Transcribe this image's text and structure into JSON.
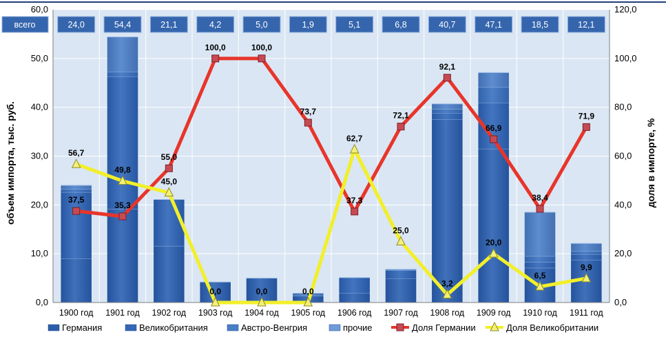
{
  "chart_data": {
    "type": "bar",
    "stacked": true,
    "categories": [
      "1900 год",
      "1901 год",
      "1902 год",
      "1903 год",
      "1904 год",
      "1905 год",
      "1906 год",
      "1907 год",
      "1908 год",
      "1909 год",
      "1910 год",
      "1911 год"
    ],
    "ylabel": "объем импорта, тыс. руб.",
    "y2label": "доля в импорте, %",
    "ylim": [
      0,
      60
    ],
    "y2lim": [
      0,
      120
    ],
    "yticks": [
      "0,0",
      "10,0",
      "20,0",
      "30,0",
      "40,0",
      "50,0",
      "60,0"
    ],
    "y2ticks": [
      "0,0",
      "20,0",
      "40,0",
      "60,0",
      "80,0",
      "100,0",
      "120,0"
    ],
    "grid": true,
    "totals_label": "всего",
    "totals": [
      24.0,
      54.4,
      21.1,
      4.2,
      5.0,
      1.9,
      5.1,
      6.8,
      40.7,
      47.1,
      18.5,
      12.1
    ],
    "totals_text": [
      "24,0",
      "54,4",
      "21,1",
      "4,2",
      "5,0",
      "1,9",
      "5,1",
      "6,8",
      "40,7",
      "47,1",
      "18,5",
      "12,1"
    ],
    "bar_series": [
      {
        "name": "Германия",
        "values": [
          9.0,
          19.2,
          11.6,
          4.2,
          5.0,
          1.4,
          1.9,
          4.9,
          37.5,
          31.5,
          7.1,
          8.7
        ],
        "color": "#2e5da8"
      },
      {
        "name": "Великобритания",
        "values": [
          13.6,
          27.1,
          9.5,
          0,
          0,
          0,
          3.2,
          1.7,
          1.3,
          9.4,
          1.2,
          1.2
        ],
        "color": "#3567b5"
      },
      {
        "name": "Австро-Венгрия",
        "values": [
          0.7,
          1.0,
          0,
          0,
          0,
          0,
          0,
          0,
          0.8,
          3.2,
          1.2,
          0.6
        ],
        "color": "#4a7ec6"
      },
      {
        "name": "прочие",
        "values": [
          0.7,
          7.1,
          0,
          0,
          0,
          0.5,
          0,
          0.2,
          1.1,
          3.0,
          9.0,
          1.6
        ],
        "color": "#6f9cd8"
      }
    ],
    "line_series": [
      {
        "name": "Доля Германии",
        "axis": "right",
        "color": "#e8352b",
        "values": [
          37.5,
          35.3,
          55.0,
          100.0,
          100.0,
          73.7,
          37.3,
          72.1,
          92.1,
          66.9,
          38.4,
          71.9
        ],
        "labels": [
          "37,5",
          "35,3",
          "55,0",
          "100,0",
          "100,0",
          "73,7",
          "37,3",
          "72,1",
          "92,1",
          "66,9",
          "38,4",
          "71,9"
        ]
      },
      {
        "name": "Доля Великобритании",
        "axis": "right",
        "color": "#f2ef2a",
        "values": [
          56.7,
          49.8,
          45.0,
          0.0,
          0.0,
          0.0,
          62.7,
          25.0,
          3.2,
          20.0,
          6.5,
          9.9
        ],
        "labels": [
          "56,7",
          "49,8",
          "45,0",
          "0,0",
          "0,0",
          "0,0",
          "62,7",
          "25,0",
          "3,2",
          "20,0",
          "6,5",
          "9,9"
        ]
      }
    ],
    "legend_position": "bottom",
    "legend": [
      "Германия",
      "Великобритания",
      "Австро-Венгрия",
      "прочие",
      "Доля Германии",
      "Доля Великобритании"
    ],
    "colors": {
      "plot_background": "#dae6f3",
      "grid": "#ffffff",
      "total_box": "#3565ad",
      "top_rule": "#1f3f7a"
    }
  }
}
